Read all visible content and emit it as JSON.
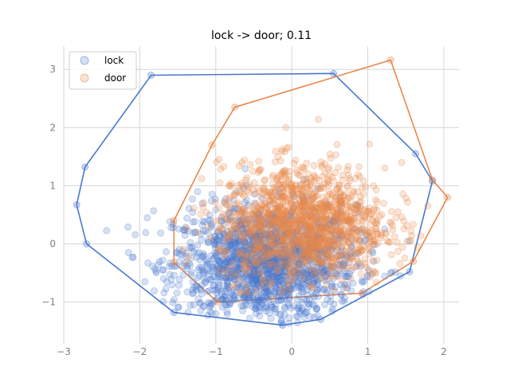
{
  "chart_data": {
    "type": "scatter",
    "title": "lock -> door; 0.11",
    "xlabel": "",
    "ylabel": "",
    "xlim": [
      -3.0,
      2.2
    ],
    "ylim": [
      -1.72,
      3.4
    ],
    "xticks": [
      -3,
      -2,
      -1,
      0,
      1,
      2
    ],
    "yticks": [
      -1,
      0,
      1,
      2,
      3
    ],
    "grid": true,
    "legend": "top-left",
    "series": [
      {
        "name": "lock",
        "color": "#4878cf",
        "center": [
          -0.35,
          -0.35
        ],
        "spread": [
          0.6,
          0.5
        ],
        "n": 1600,
        "hull": [
          [
            -2.72,
            1.32
          ],
          [
            -1.85,
            2.9
          ],
          [
            0.55,
            2.93
          ],
          [
            1.63,
            1.55
          ],
          [
            1.85,
            1.08
          ],
          [
            1.55,
            -0.48
          ],
          [
            0.38,
            -1.3
          ],
          [
            -0.12,
            -1.4
          ],
          [
            -1.55,
            -1.18
          ],
          [
            -2.7,
            0.0
          ],
          [
            -2.83,
            0.67
          ]
        ]
      },
      {
        "name": "door",
        "color": "#e8874a",
        "center": [
          0.15,
          0.35
        ],
        "spread": [
          0.55,
          0.5
        ],
        "n": 1400,
        "hull": [
          [
            -0.75,
            2.35
          ],
          [
            1.3,
            3.16
          ],
          [
            1.85,
            1.1
          ],
          [
            2.05,
            0.8
          ],
          [
            1.6,
            -0.3
          ],
          [
            0.92,
            -0.85
          ],
          [
            -0.98,
            -1.0
          ],
          [
            -1.55,
            -0.32
          ],
          [
            -1.55,
            0.4
          ],
          [
            -1.05,
            1.7
          ]
        ]
      }
    ]
  }
}
